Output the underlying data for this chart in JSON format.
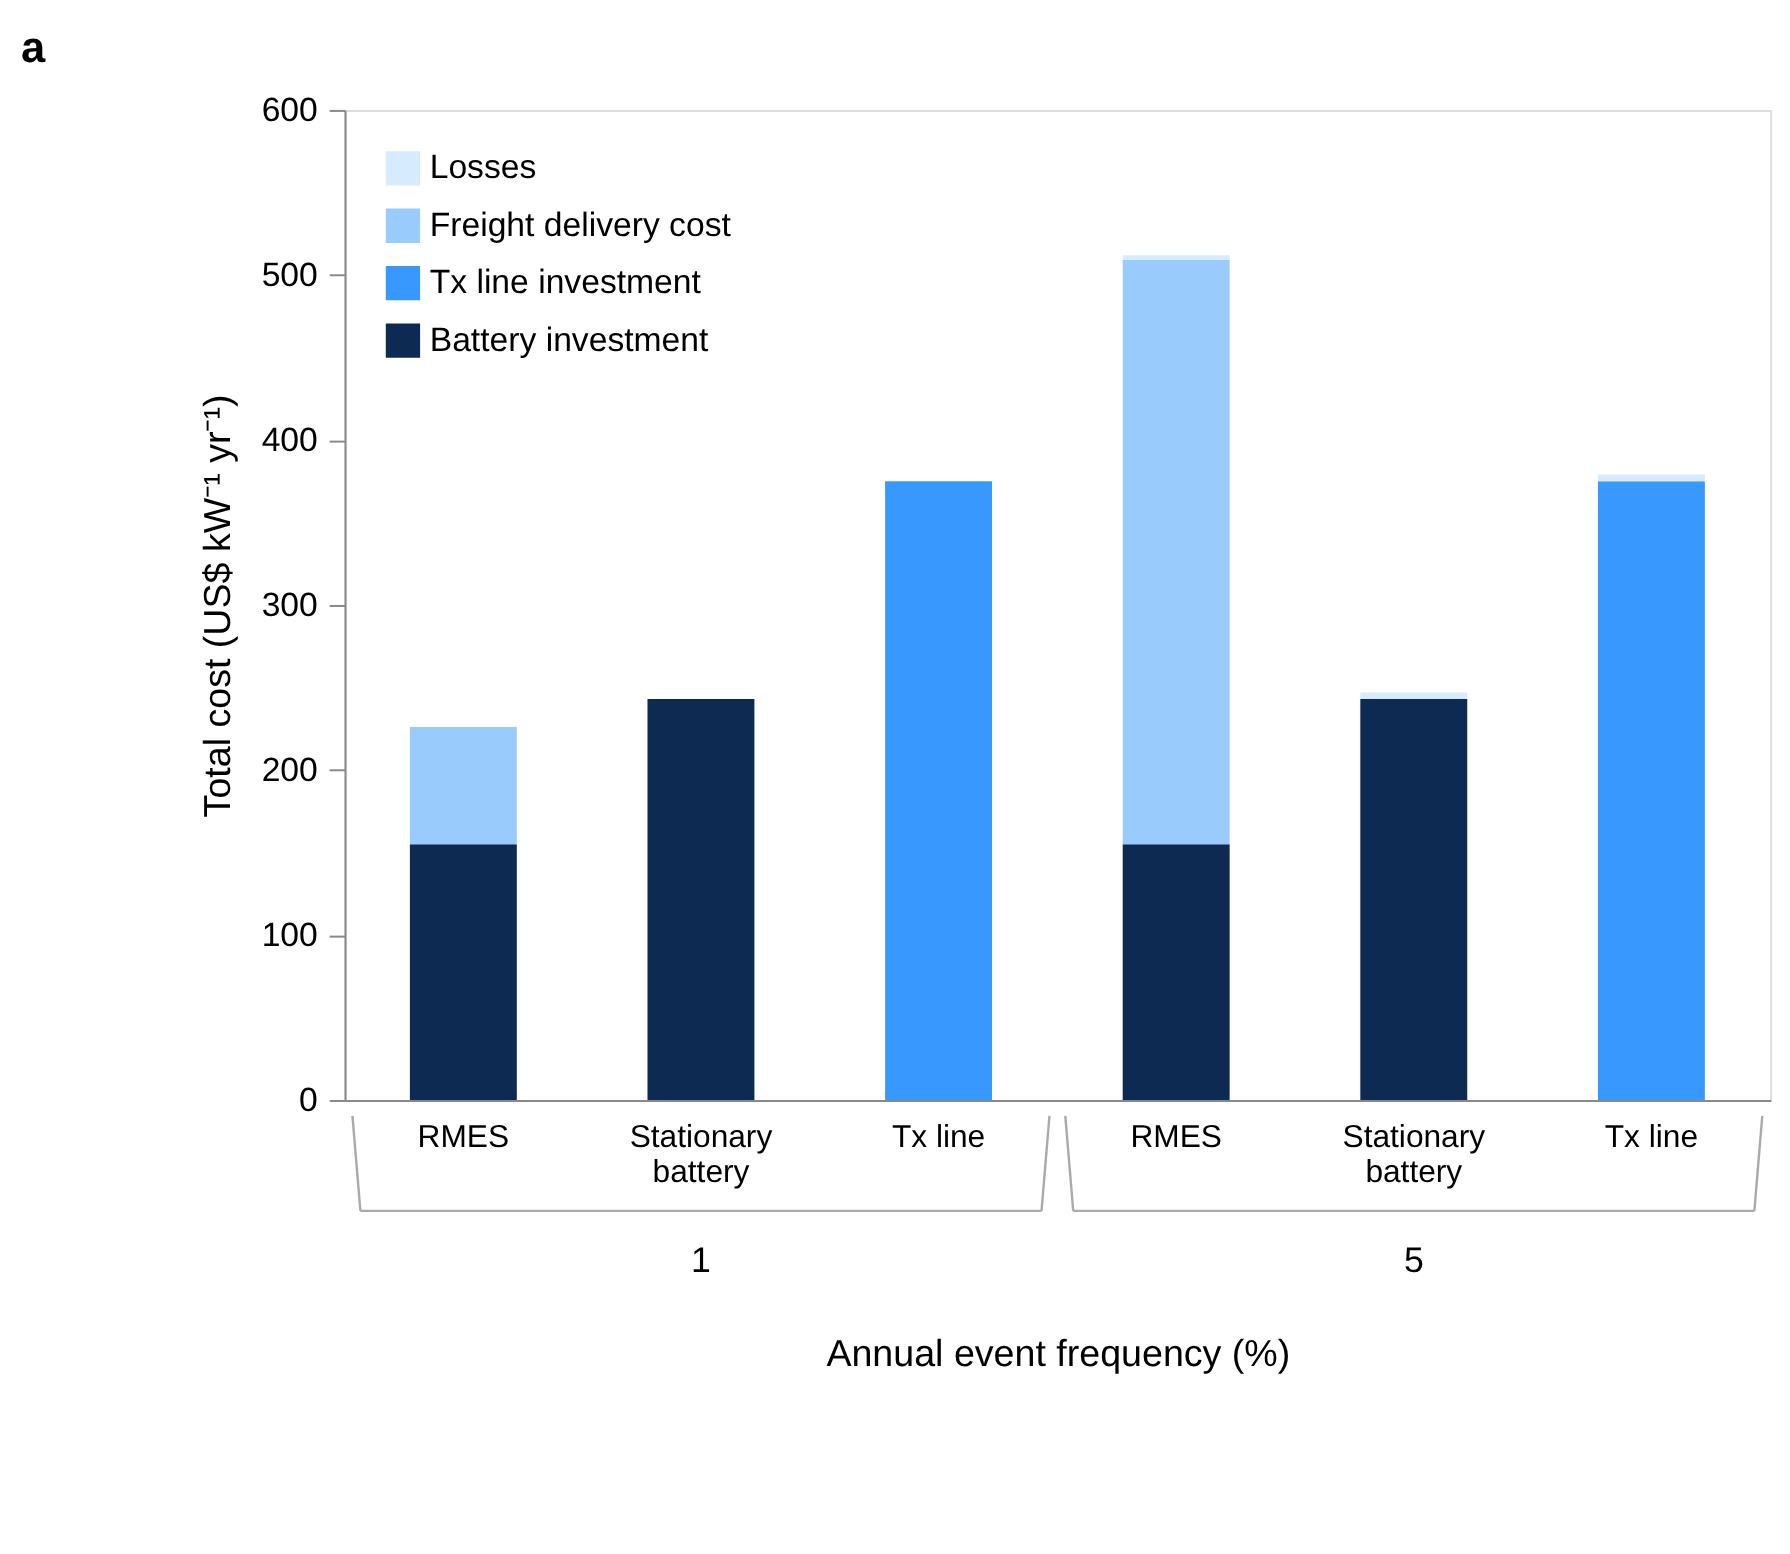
{
  "chart_data": {
    "type": "bar",
    "stacked": true,
    "title": "a",
    "categories": [
      "RMES",
      "Stationary battery",
      "Tx line",
      "RMES",
      "Stationary battery",
      "Tx line"
    ],
    "series": [
      {
        "name": "Battery investment",
        "color": "#0c2a52",
        "values": [
          155,
          243,
          0,
          155,
          243,
          0
        ]
      },
      {
        "name": "Tx line investment",
        "color": "#3898fd",
        "values": [
          0,
          0,
          375,
          0,
          0,
          375
        ]
      },
      {
        "name": "Freight delivery cost",
        "color": "#99cbfd",
        "values": [
          71,
          0,
          0,
          354,
          0,
          0
        ]
      },
      {
        "name": "Losses",
        "color": "#d6ebfd",
        "values": [
          0,
          0,
          0,
          3,
          4,
          4
        ]
      }
    ],
    "xlabel": "Annual event frequency (%)",
    "ylabel": "Total cost (US$ kW⁻¹ yr⁻¹)",
    "annotations": [
      "1",
      "5"
    ],
    "ylim": [
      0,
      600
    ],
    "yticks": [
      0,
      100,
      200,
      300,
      400,
      500,
      600
    ],
    "grid": false,
    "legend": "top left"
  }
}
